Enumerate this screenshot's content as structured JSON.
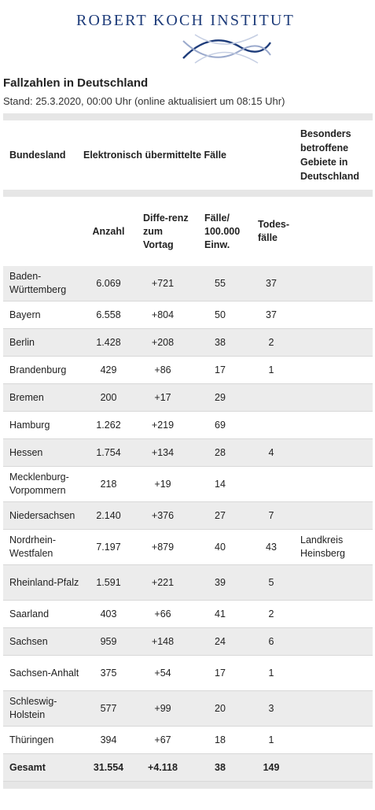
{
  "header": {
    "logo_text": "ROBERT KOCH INSTITUT",
    "title": "Fallzahlen in Deutschland",
    "stand": "Stand: 25.3.2020, 00:00 Uhr (online aktualisiert um 08:15 Uhr)"
  },
  "table": {
    "col_bundesland": "Bundesland",
    "col_group": "Elektronisch übermittelte Fälle",
    "col_besonders": "Besonders betroffene Gebiete in Deutschland",
    "sub_anzahl": "Anzahl",
    "sub_differenz": "Diffe-renz zum Vortag",
    "sub_faelle": "Fälle/ 100.000 Einw.",
    "sub_todes": "Todes-fälle",
    "rows": [
      {
        "land": "Baden-Württemberg",
        "anzahl": "6.069",
        "diff": "+721",
        "faelle": "55",
        "tod": "37",
        "gebiet": ""
      },
      {
        "land": "Bayern",
        "anzahl": "6.558",
        "diff": "+804",
        "faelle": "50",
        "tod": "37",
        "gebiet": ""
      },
      {
        "land": "Berlin",
        "anzahl": "1.428",
        "diff": "+208",
        "faelle": "38",
        "tod": "2",
        "gebiet": ""
      },
      {
        "land": "Brandenburg",
        "anzahl": "429",
        "diff": "+86",
        "faelle": "17",
        "tod": "1",
        "gebiet": ""
      },
      {
        "land": "Bremen",
        "anzahl": "200",
        "diff": "+17",
        "faelle": "29",
        "tod": "",
        "gebiet": ""
      },
      {
        "land": "Hamburg",
        "anzahl": "1.262",
        "diff": "+219",
        "faelle": "69",
        "tod": "",
        "gebiet": ""
      },
      {
        "land": "Hessen",
        "anzahl": "1.754",
        "diff": "+134",
        "faelle": "28",
        "tod": "4",
        "gebiet": ""
      },
      {
        "land": "Mecklenburg-Vorpommern",
        "anzahl": "218",
        "diff": "+19",
        "faelle": "14",
        "tod": "",
        "gebiet": ""
      },
      {
        "land": "Niedersachsen",
        "anzahl": "2.140",
        "diff": "+376",
        "faelle": "27",
        "tod": "7",
        "gebiet": ""
      },
      {
        "land": "Nordrhein-Westfalen",
        "anzahl": "7.197",
        "diff": "+879",
        "faelle": "40",
        "tod": "43",
        "gebiet": "Landkreis Heinsberg"
      },
      {
        "land": "Rheinland-Pfalz",
        "anzahl": "1.591",
        "diff": "+221",
        "faelle": "39",
        "tod": "5",
        "gebiet": ""
      },
      {
        "land": "Saarland",
        "anzahl": "403",
        "diff": "+66",
        "faelle": "41",
        "tod": "2",
        "gebiet": ""
      },
      {
        "land": "Sachsen",
        "anzahl": "959",
        "diff": "+148",
        "faelle": "24",
        "tod": "6",
        "gebiet": ""
      },
      {
        "land": "Sachsen-Anhalt",
        "anzahl": "375",
        "diff": "+54",
        "faelle": "17",
        "tod": "1",
        "gebiet": ""
      },
      {
        "land": "Schleswig-Holstein",
        "anzahl": "577",
        "diff": "+99",
        "faelle": "20",
        "tod": "3",
        "gebiet": ""
      },
      {
        "land": "Thüringen",
        "anzahl": "394",
        "diff": "+67",
        "faelle": "18",
        "tod": "1",
        "gebiet": ""
      }
    ],
    "total": {
      "land": "Gesamt",
      "anzahl": "31.554",
      "diff": "+4.118",
      "faelle": "38",
      "tod": "149",
      "gebiet": ""
    }
  }
}
